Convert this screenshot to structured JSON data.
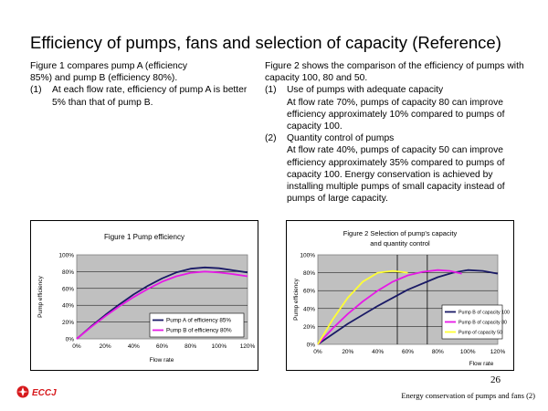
{
  "slide": {
    "title": "Efficiency of pumps, fans and selection of capacity (Reference)",
    "left_text": {
      "intro_line1": "Figure 1 compares pump A (efficiency",
      "intro_line2": "85%) and pump B (efficiency 80%).",
      "item1_num": "(1)",
      "item1_text": "At each flow rate, efficiency of pump A is better 5% than that of pump B."
    },
    "right_text": {
      "intro": "Figure 2 shows the comparison of the efficiency of pumps with capacity 100, 80 and 50.",
      "item1_num": "(1)",
      "item1_head": "Use of pumps with adequate capacity",
      "item1_body": "At flow rate 70%, pumps of capacity 80 can improve efficiency approximately 10% compared to pumps of capacity 100.",
      "item2_num": "(2)",
      "item2_head": "Quantity control of pumps",
      "item2_body": "At flow rate 40%, pumps of capacity 50 can improve efficiency approximately 35% compared to pumps of capacity 100. Energy conservation is achieved by installing multiple pumps of small capacity instead of pumps of large capacity."
    },
    "footer": {
      "logo_text": "ECCJ",
      "page_number": "26",
      "caption": "Energy conservation of pumps and fans (2)"
    },
    "colors": {
      "logo_red": "#d7191c",
      "plot_bg": "#c0c0c0"
    }
  },
  "chart_data": [
    {
      "type": "line",
      "title": "Figure 1 Pump efficiency",
      "xlabel": "Flow rate",
      "ylabel": "Pump efficiency",
      "xlim": [
        0,
        120
      ],
      "ylim": [
        0,
        100
      ],
      "xticks": [
        "0%",
        "20%",
        "40%",
        "60%",
        "80%",
        "100%",
        "120%"
      ],
      "yticks": [
        "0%",
        "20%",
        "40%",
        "60%",
        "80%",
        "100%"
      ],
      "grid": true,
      "legend_position": "bottom-right",
      "series": [
        {
          "name": "Pump A of efficiency  85%",
          "color": "#1a1a66",
          "x": [
            0,
            10,
            20,
            30,
            40,
            50,
            60,
            70,
            80,
            90,
            100,
            110,
            120
          ],
          "y": [
            0,
            14.7,
            28.4,
            41.1,
            52.8,
            63.1,
            72.0,
            79.0,
            83.5,
            85.0,
            84.0,
            81.5,
            79.0
          ]
        },
        {
          "name": "Pump B of efficiency  80%",
          "color": "#e619e6",
          "x": [
            0,
            10,
            20,
            30,
            40,
            50,
            60,
            70,
            80,
            90,
            100,
            110,
            120
          ],
          "y": [
            0,
            13.9,
            26.8,
            38.8,
            49.7,
            59.5,
            68.0,
            74.5,
            78.6,
            80.0,
            79.0,
            77.0,
            74.5
          ]
        }
      ]
    },
    {
      "type": "line",
      "title": "Figure 2 Selection of pump's capacity and quantity control",
      "xlabel": "Flow rate",
      "ylabel": "Pump efficiency",
      "xlim": [
        0,
        120
      ],
      "ylim": [
        0,
        100
      ],
      "xticks": [
        "0%",
        "20%",
        "40%",
        "60%",
        "80%",
        "100%",
        "120%"
      ],
      "yticks": [
        "0%",
        "20%",
        "40%",
        "60%",
        "80%",
        "100%"
      ],
      "grid": true,
      "legend_position": "bottom-right",
      "vlines": [
        53,
        73
      ],
      "series": [
        {
          "name": "Pump B of capacity 100",
          "color": "#1a1a66",
          "x": [
            0,
            20,
            40,
            60,
            80,
            90,
            100,
            110,
            120
          ],
          "y": [
            0,
            23,
            43,
            61,
            75,
            80,
            83,
            82,
            79
          ]
        },
        {
          "name": "Pump B of capacity 80",
          "color": "#e619e6",
          "x": [
            0,
            10,
            20,
            30,
            40,
            50,
            60,
            70,
            80,
            88,
            96
          ],
          "y": [
            0,
            18,
            34,
            48,
            60,
            70,
            77,
            81,
            83,
            82,
            79
          ]
        },
        {
          "name": "Pump of  capacity 50",
          "color": "#ffff33",
          "x": [
            0,
            10,
            20,
            30,
            40,
            50,
            60
          ],
          "y": [
            0,
            28,
            52,
            70,
            80,
            82,
            80
          ]
        }
      ]
    }
  ]
}
